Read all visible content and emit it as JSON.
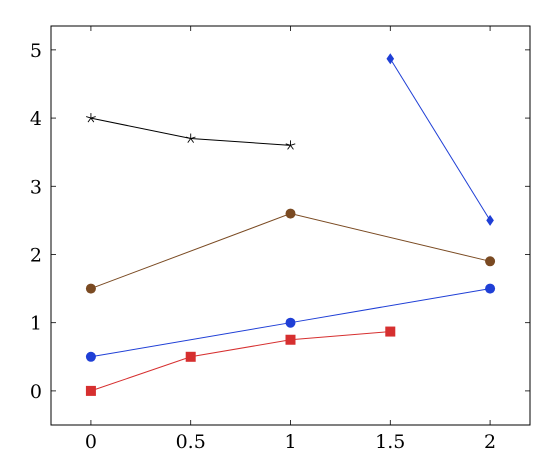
{
  "chart_data": {
    "type": "line",
    "title": "",
    "xlabel": "",
    "ylabel": "",
    "xlim": [
      -0.2,
      2.2
    ],
    "ylim": [
      -0.5,
      5.35
    ],
    "x_ticks": [
      0,
      0.5,
      1,
      1.5,
      2
    ],
    "x_tick_labels": [
      "0",
      "0.5",
      "1",
      "1.5",
      "2"
    ],
    "y_ticks": [
      0,
      1,
      2,
      3,
      4,
      5
    ],
    "y_tick_labels": [
      "0",
      "1",
      "2",
      "3",
      "4",
      "5"
    ],
    "grid": false,
    "legend": "none",
    "series": [
      {
        "x": [
          0,
          0.5,
          1
        ],
        "y": [
          4.0,
          3.7,
          3.6
        ],
        "color": "#000000",
        "marker": "star"
      },
      {
        "x": [
          1.5,
          2
        ],
        "y": [
          4.87,
          2.5
        ],
        "color": "#1f3fd6",
        "marker": "diamond"
      },
      {
        "x": [
          0,
          1,
          2
        ],
        "y": [
          1.5,
          2.6,
          1.9
        ],
        "color": "#7a4a22",
        "marker": "circle"
      },
      {
        "x": [
          0,
          1,
          2
        ],
        "y": [
          0.5,
          1.0,
          1.5
        ],
        "color": "#1f3fd6",
        "marker": "circle"
      },
      {
        "x": [
          0,
          0.5,
          1,
          1.5
        ],
        "y": [
          0.0,
          0.5,
          0.75,
          0.87
        ],
        "color": "#d62f2f",
        "marker": "square"
      }
    ]
  }
}
